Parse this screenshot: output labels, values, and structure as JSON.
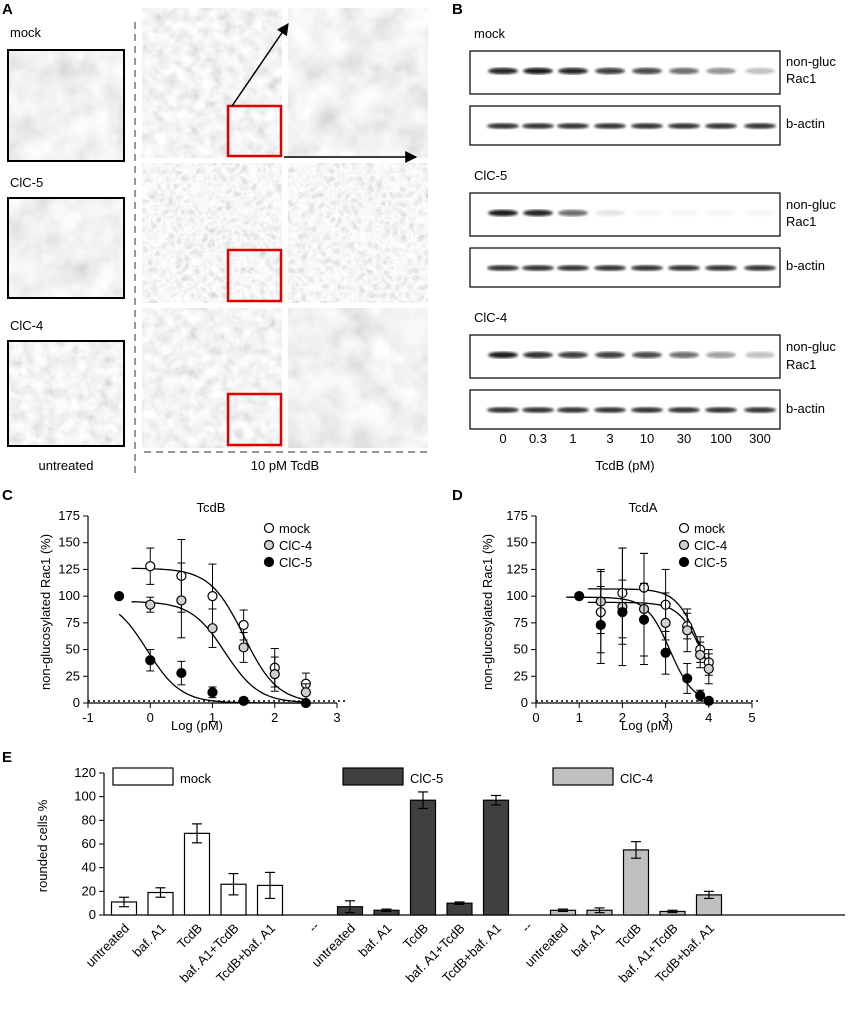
{
  "panel_a": {
    "label": "A",
    "rows": [
      "mock",
      "ClC-5",
      "ClC-4"
    ],
    "bottom_left": "untreated",
    "bottom_right": "10 pM TcdB"
  },
  "panel_b": {
    "label": "B",
    "groups": [
      "mock",
      "ClC-5",
      "ClC-4"
    ],
    "band_label_1": "non-gluc",
    "band_label_2": "Rac1",
    "actin_label": "b-actin",
    "lanes": [
      "0",
      "0.3",
      "1",
      "3",
      "10",
      "30",
      "100",
      "300"
    ],
    "xlabel": "TcdB (pM)",
    "band_intensity": {
      "mock": [
        0.9,
        0.95,
        0.9,
        0.8,
        0.75,
        0.6,
        0.45,
        0.25
      ],
      "ClC-5": [
        0.95,
        0.9,
        0.6,
        0.1,
        0.04,
        0.02,
        0.02,
        0.01
      ],
      "ClC-4": [
        0.95,
        0.85,
        0.8,
        0.8,
        0.75,
        0.6,
        0.4,
        0.25
      ]
    }
  },
  "chart_data": [
    {
      "id": "C",
      "panel_label": "C",
      "type": "scatter",
      "title": "TcdB",
      "xlabel": "Log (pM)",
      "ylabel": "non-glucosylated Rac1 (%)",
      "xlim": [
        -1,
        3
      ],
      "ylim": [
        0,
        175
      ],
      "xticks": [
        "-1",
        "0",
        "1",
        "2",
        "3"
      ],
      "yticks": [
        "0",
        "25",
        "50",
        "75",
        "100",
        "125",
        "150",
        "175"
      ],
      "legend": "top-right",
      "series": [
        {
          "name": "mock",
          "marker": "open",
          "x": [
            0,
            0.5,
            1,
            1.5,
            2,
            2.5
          ],
          "y": [
            128,
            119,
            100,
            73,
            33,
            18
          ],
          "err": [
            17,
            34,
            30,
            14,
            18,
            10
          ]
        },
        {
          "name": "ClC-4",
          "marker": "grey",
          "x": [
            0,
            0.5,
            1,
            1.5,
            2,
            2.5
          ],
          "y": [
            92,
            96,
            70,
            52,
            27,
            10
          ],
          "err": [
            7,
            35,
            18,
            14,
            16,
            8
          ]
        },
        {
          "name": "ClC-5",
          "marker": "filled",
          "x": [
            -0.5,
            0,
            0.5,
            1,
            1.5,
            2.5
          ],
          "y": [
            100,
            40,
            28,
            10,
            2,
            0
          ],
          "err": [
            0,
            10,
            11,
            5,
            3,
            1
          ]
        }
      ]
    },
    {
      "id": "D",
      "panel_label": "D",
      "type": "scatter",
      "title": "TcdA",
      "xlabel": "Log (pM)",
      "ylabel": "non-glucosylated Rac1 (%)",
      "xlim": [
        0,
        5
      ],
      "ylim": [
        0,
        175
      ],
      "xticks": [
        "0",
        "1",
        "2",
        "3",
        "4",
        "5"
      ],
      "yticks": [
        "0",
        "25",
        "50",
        "75",
        "100",
        "125",
        "150",
        "175"
      ],
      "legend": "top-right",
      "series": [
        {
          "name": "mock",
          "marker": "open",
          "x": [
            1.5,
            2,
            2.5,
            3,
            3.5,
            3.8,
            4
          ],
          "y": [
            85,
            103,
            108,
            92,
            72,
            50,
            38
          ],
          "err": [
            38,
            42,
            32,
            33,
            12,
            12,
            12
          ]
        },
        {
          "name": "ClC-4",
          "marker": "grey",
          "x": [
            1.5,
            2,
            2.5,
            3,
            3.5,
            3.8,
            4
          ],
          "y": [
            95,
            90,
            88,
            75,
            68,
            45,
            32
          ],
          "err": [
            30,
            55,
            52,
            28,
            20,
            12,
            14
          ]
        },
        {
          "name": "ClC-5",
          "marker": "filled",
          "x": [
            1,
            1.5,
            2,
            2.5,
            3,
            3.5,
            3.8,
            4
          ],
          "y": [
            100,
            73,
            85,
            78,
            47,
            23,
            7,
            2
          ],
          "err": [
            0,
            36,
            30,
            34,
            20,
            14,
            5,
            2
          ]
        }
      ]
    },
    {
      "id": "E",
      "panel_label": "E",
      "type": "bar",
      "ylabel": "rounded cells %",
      "ylim": [
        0,
        120
      ],
      "yticks": [
        "0",
        "20",
        "40",
        "60",
        "80",
        "100",
        "120"
      ],
      "separator_label": "--",
      "categories": [
        "untreated",
        "baf. A1",
        "TcdB",
        "baf. A1+TcdB",
        "TcdB+baf. A1"
      ],
      "series": [
        {
          "name": "mock",
          "color": "#ffffff",
          "values": [
            11,
            19,
            69,
            26,
            25
          ],
          "err": [
            4,
            4,
            8,
            9,
            11
          ]
        },
        {
          "name": "ClC-5",
          "color": "#404040",
          "values": [
            7,
            4,
            97,
            10,
            97
          ],
          "err": [
            5,
            1,
            7,
            1,
            4
          ]
        },
        {
          "name": "ClC-4",
          "color": "#c0c0c0",
          "values": [
            4,
            4,
            55,
            3,
            17
          ],
          "err": [
            1,
            2,
            7,
            1,
            3
          ]
        }
      ]
    }
  ]
}
